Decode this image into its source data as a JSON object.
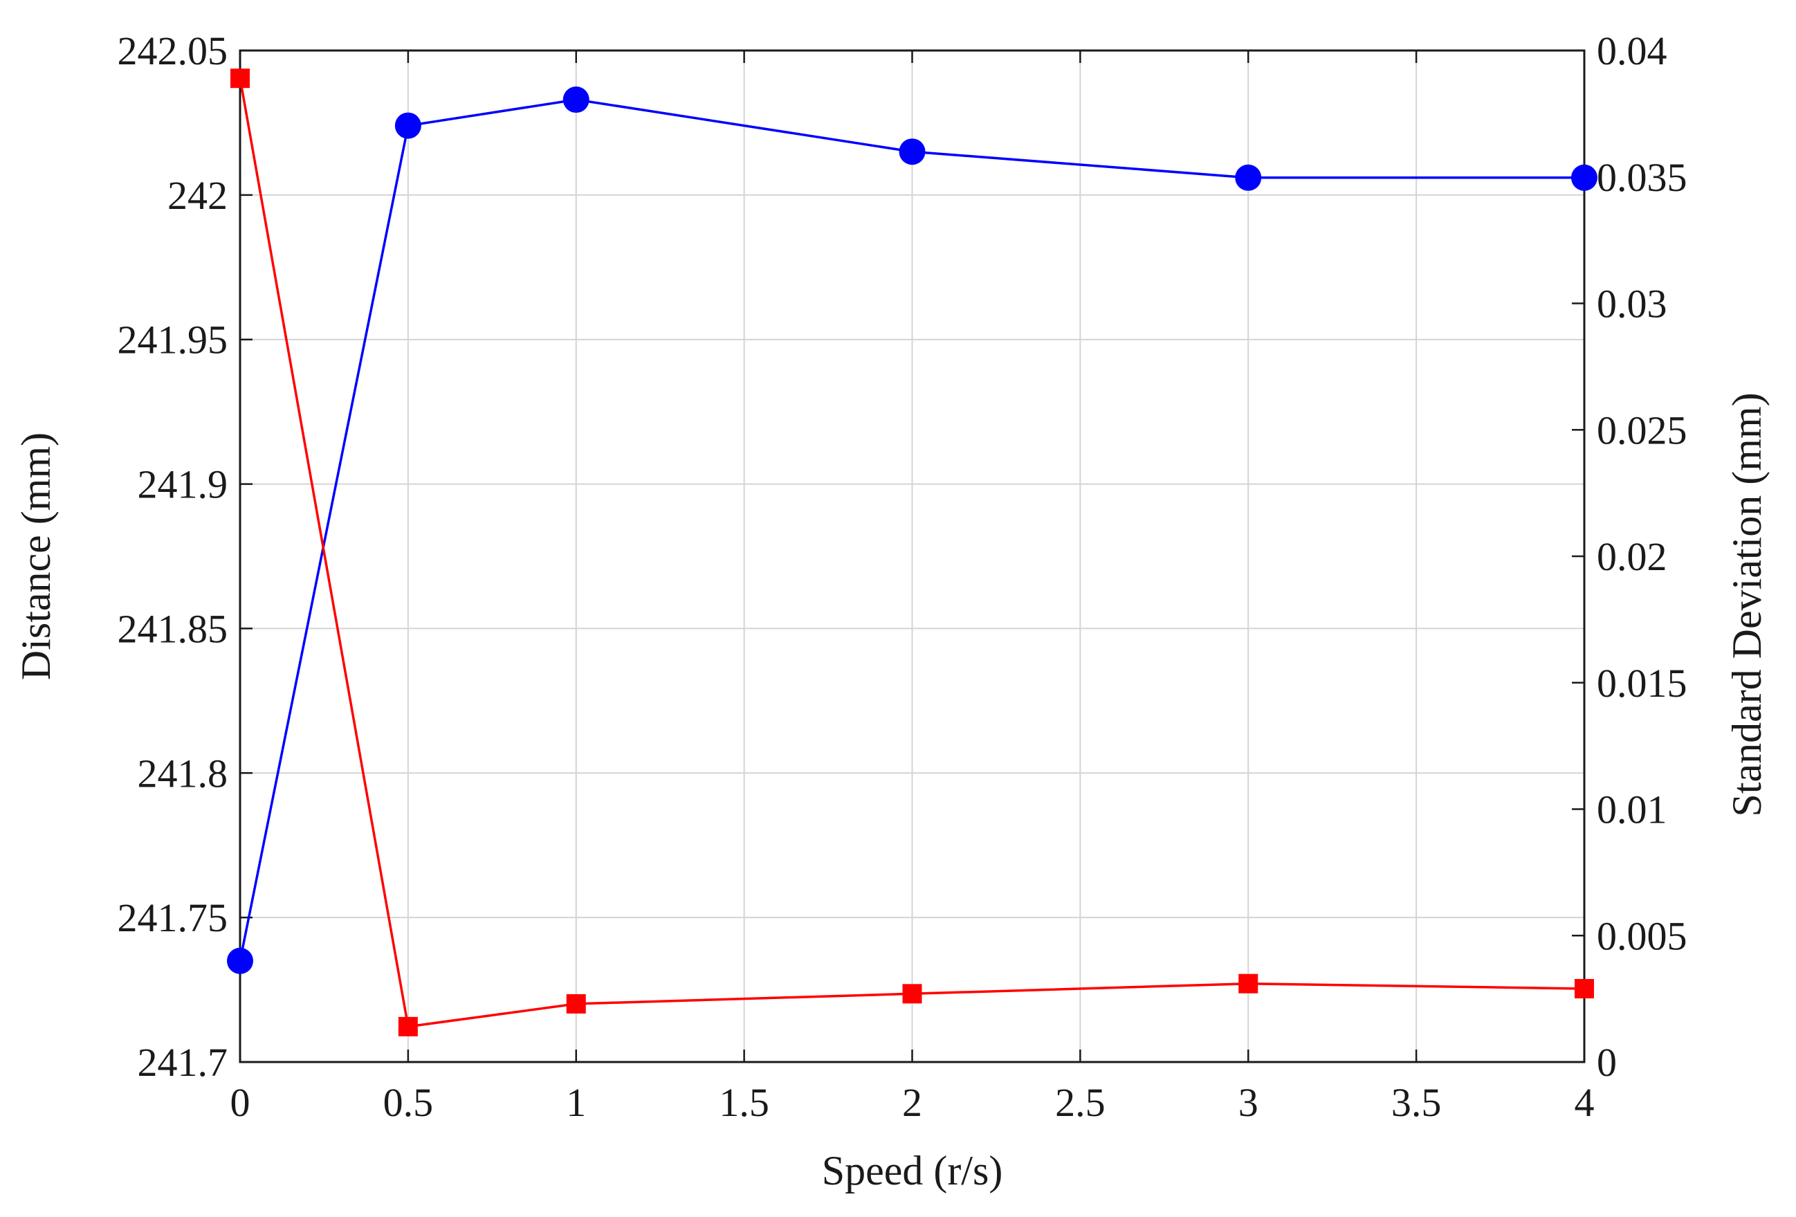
{
  "chart_data": {
    "type": "line",
    "title": "",
    "xlabel": "Speed (r/s)",
    "ylabel_left": "Distance (mm)",
    "ylabel_right": "Standard Deviation (mm)",
    "xlim": [
      0,
      4
    ],
    "ylim_left": [
      241.7,
      242.05
    ],
    "ylim_right": [
      0,
      0.04
    ],
    "grid": true,
    "x_ticks": [
      "0",
      "0.5",
      "1",
      "1.5",
      "2",
      "2.5",
      "3",
      "3.5",
      "4"
    ],
    "y_left_ticks": [
      "241.7",
      "241.75",
      "241.8",
      "241.85",
      "241.9",
      "241.95",
      "242",
      "242.05"
    ],
    "y_right_ticks": [
      "0",
      "0.005",
      "0.01",
      "0.015",
      "0.02",
      "0.025",
      "0.03",
      "0.035",
      "0.04"
    ],
    "x": [
      0,
      0.5,
      1,
      2,
      3,
      4
    ],
    "series": [
      {
        "axis": "left",
        "color": "#0000ff",
        "marker": "circle",
        "values": [
          241.735,
          242.024,
          242.033,
          242.015,
          242.006,
          242.006
        ]
      },
      {
        "axis": "right",
        "color": "#ff0000",
        "marker": "square",
        "values": [
          0.0389,
          0.0014,
          0.0023,
          0.0027,
          0.0031,
          0.0029
        ]
      }
    ]
  }
}
